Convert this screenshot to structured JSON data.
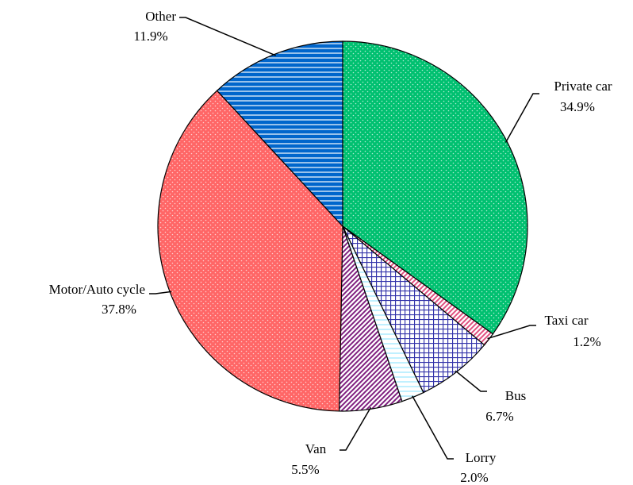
{
  "chart_data": {
    "type": "pie",
    "categories": [
      "Private car",
      "Taxi car",
      "Bus",
      "Lorry",
      "Van",
      "Motor/Auto cycle",
      "Other"
    ],
    "values": [
      34.9,
      1.2,
      6.7,
      2.0,
      5.5,
      37.8,
      11.9
    ],
    "value_labels": [
      "34.9%",
      "1.2%",
      "6.7%",
      "2.0%",
      "5.5%",
      "37.8%",
      "11.9%"
    ],
    "colors": [
      "#00c070",
      "#e05080",
      "#3333aa",
      "#80e0ff",
      "#802080",
      "#ff6666",
      "#0066cc"
    ],
    "patterns": [
      "dots",
      "diag",
      "grid",
      "hlines",
      "diag",
      "dots",
      "hstripes"
    ]
  }
}
